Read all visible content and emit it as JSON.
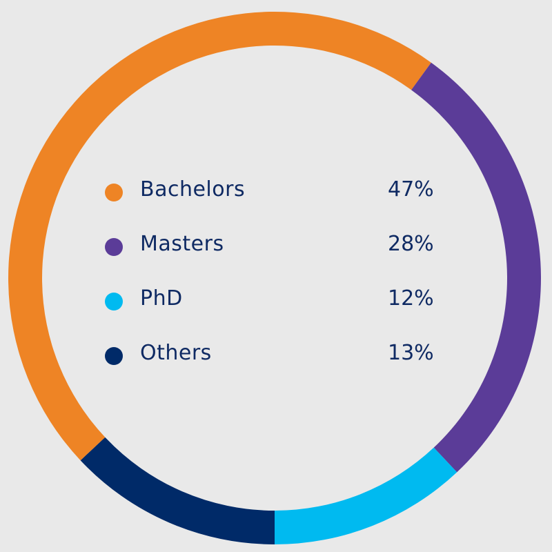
{
  "chart_data": {
    "type": "donut",
    "title": "",
    "unit": "%",
    "categories": [
      "Bachelors",
      "Masters",
      "PhD",
      "Others"
    ],
    "values": [
      47,
      28,
      12,
      13
    ],
    "value_labels": [
      "47%",
      "28%",
      "12%",
      "13%"
    ],
    "colors": [
      "#ee8425",
      "#5b3c98",
      "#00baf0",
      "#002a68"
    ],
    "segment_order": [
      "Others",
      "Bachelors",
      "Masters",
      "PhD"
    ],
    "start": "bottom",
    "direction": "clockwise",
    "legend_placement": "center"
  }
}
